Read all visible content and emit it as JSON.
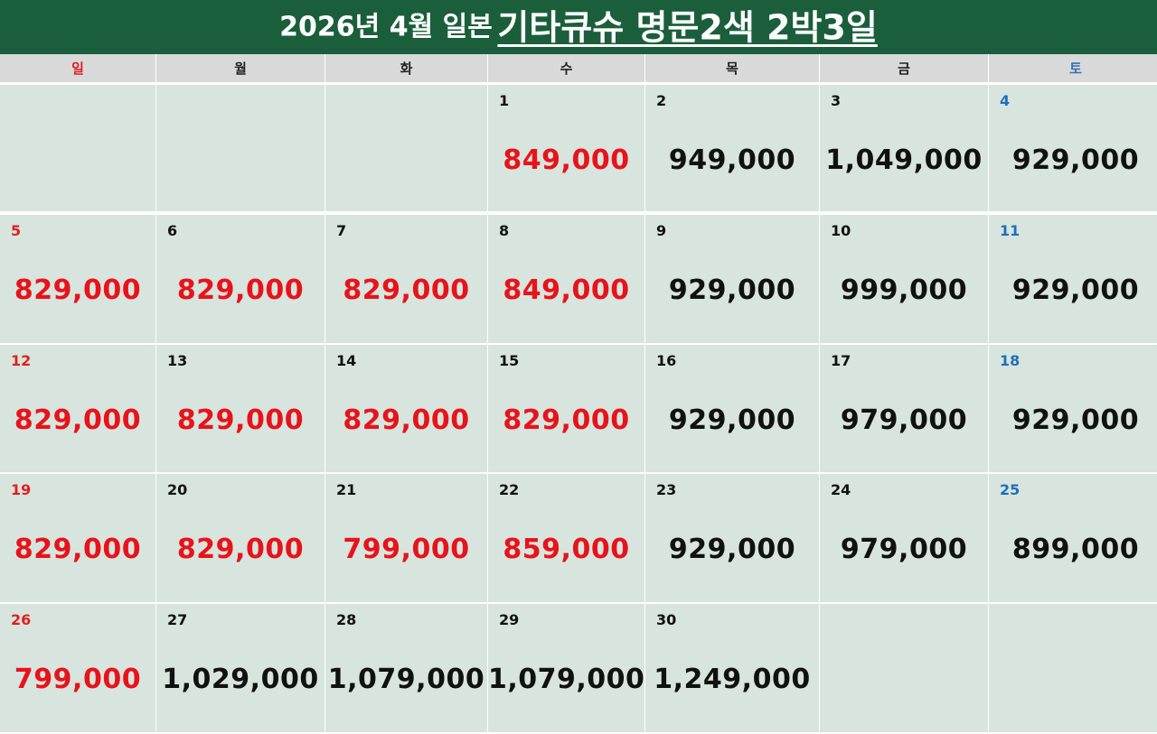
{
  "title": {
    "prefix": "2026년 4월 일본",
    "highlight": "기타큐슈 명문2색 2박3일"
  },
  "weekdays": [
    "일",
    "월",
    "화",
    "수",
    "목",
    "금",
    "토"
  ],
  "weeks": [
    [
      {
        "day": "",
        "price": ""
      },
      {
        "day": "",
        "price": ""
      },
      {
        "day": "",
        "price": ""
      },
      {
        "day": "1",
        "price": "849,000",
        "red": true
      },
      {
        "day": "2",
        "price": "949,000"
      },
      {
        "day": "3",
        "price": "1,049,000"
      },
      {
        "day": "4",
        "price": "929,000"
      }
    ],
    [
      {
        "day": "5",
        "price": "829,000",
        "red": true
      },
      {
        "day": "6",
        "price": "829,000",
        "red": true
      },
      {
        "day": "7",
        "price": "829,000",
        "red": true
      },
      {
        "day": "8",
        "price": "849,000",
        "red": true
      },
      {
        "day": "9",
        "price": "929,000"
      },
      {
        "day": "10",
        "price": "999,000"
      },
      {
        "day": "11",
        "price": "929,000"
      }
    ],
    [
      {
        "day": "12",
        "price": "829,000",
        "red": true
      },
      {
        "day": "13",
        "price": "829,000",
        "red": true
      },
      {
        "day": "14",
        "price": "829,000",
        "red": true
      },
      {
        "day": "15",
        "price": "829,000",
        "red": true
      },
      {
        "day": "16",
        "price": "929,000"
      },
      {
        "day": "17",
        "price": "979,000"
      },
      {
        "day": "18",
        "price": "929,000"
      }
    ],
    [
      {
        "day": "19",
        "price": "829,000",
        "red": true
      },
      {
        "day": "20",
        "price": "829,000",
        "red": true
      },
      {
        "day": "21",
        "price": "799,000",
        "red": true
      },
      {
        "day": "22",
        "price": "859,000",
        "red": true
      },
      {
        "day": "23",
        "price": "929,000"
      },
      {
        "day": "24",
        "price": "979,000"
      },
      {
        "day": "25",
        "price": "899,000"
      }
    ],
    [
      {
        "day": "26",
        "price": "799,000",
        "red": true
      },
      {
        "day": "27",
        "price": "1,029,000"
      },
      {
        "day": "28",
        "price": "1,079,000"
      },
      {
        "day": "29",
        "price": "1,079,000"
      },
      {
        "day": "30",
        "price": "1,249,000"
      },
      {
        "day": "",
        "price": ""
      },
      {
        "day": "",
        "price": ""
      }
    ]
  ]
}
